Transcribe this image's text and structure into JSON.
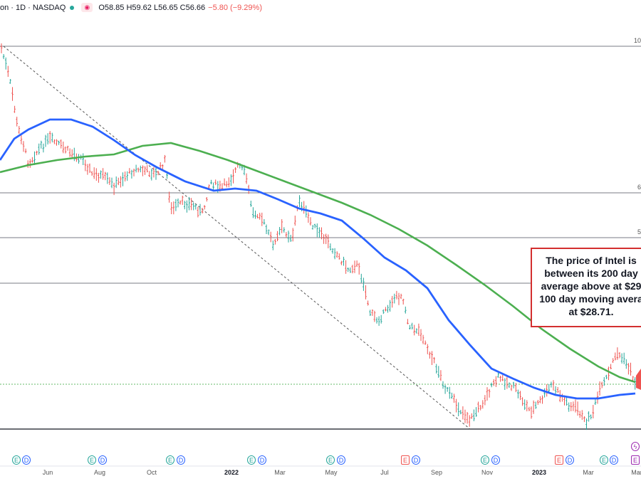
{
  "header": {
    "symbol": "on · 1D · NASDAQ",
    "eye_icon": "eye-icon",
    "ohlc": "O58.85 H59.62 L56.65 C56.66",
    "change": "−5.80 (−9.29%)"
  },
  "annotation": {
    "lines": [
      "The price of Intel is",
      "between its 200 day",
      "average above at $29",
      "100 day moving avera",
      "at $28.71."
    ],
    "border_color": "#d32f2f"
  },
  "price_axis_labels": [
    "10",
    "6",
    "5"
  ],
  "events": {
    "top_row": [
      "E",
      "D",
      "E",
      "D",
      "E",
      "D",
      "E",
      "D",
      "E",
      "D",
      "E",
      "D",
      "E",
      "D",
      "E",
      "D",
      "E",
      "D",
      "E",
      "E"
    ],
    "lightning_icon": "lightning-icon"
  },
  "colors": {
    "ma200": "#4caf50",
    "ma100": "#2962ff",
    "up": "#26a69a",
    "down": "#ef5350",
    "hline": "#787b86",
    "last_price_line": "#66bb6a"
  },
  "chart_data": {
    "type": "candlestick",
    "title": "",
    "x_ticks": [
      "Jun",
      "Aug",
      "Oct",
      "2022",
      "Mar",
      "May",
      "Jul",
      "Sep",
      "Nov",
      "2023",
      "Mar",
      "Mar"
    ],
    "bold_ticks": [
      "2022",
      "2023"
    ],
    "series": [
      {
        "name": "",
        "style": "line",
        "color": "#4caf50",
        "points": [
          [
            0,
            242
          ],
          [
            40,
            232
          ],
          [
            80,
            225
          ],
          [
            120,
            220
          ],
          [
            160,
            217
          ],
          [
            200,
            205
          ],
          [
            240,
            201
          ],
          [
            280,
            212
          ],
          [
            320,
            225
          ],
          [
            360,
            240
          ],
          [
            400,
            255
          ],
          [
            440,
            270
          ],
          [
            480,
            285
          ],
          [
            520,
            302
          ],
          [
            560,
            322
          ],
          [
            600,
            345
          ],
          [
            640,
            372
          ],
          [
            680,
            400
          ],
          [
            720,
            430
          ],
          [
            760,
            462
          ],
          [
            800,
            490
          ],
          [
            840,
            515
          ],
          [
            870,
            530
          ],
          [
            892,
            537
          ]
        ]
      },
      {
        "name": "",
        "style": "line",
        "color": "#2962ff",
        "points": [
          [
            0,
            225
          ],
          [
            20,
            195
          ],
          [
            40,
            182
          ],
          [
            70,
            168
          ],
          [
            100,
            168
          ],
          [
            130,
            178
          ],
          [
            160,
            197
          ],
          [
            190,
            218
          ],
          [
            220,
            235
          ],
          [
            260,
            255
          ],
          [
            300,
            268
          ],
          [
            330,
            265
          ],
          [
            360,
            268
          ],
          [
            390,
            280
          ],
          [
            420,
            293
          ],
          [
            450,
            300
          ],
          [
            480,
            310
          ],
          [
            510,
            335
          ],
          [
            540,
            362
          ],
          [
            570,
            380
          ],
          [
            600,
            405
          ],
          [
            630,
            450
          ],
          [
            660,
            485
          ],
          [
            690,
            518
          ],
          [
            720,
            532
          ],
          [
            750,
            545
          ],
          [
            780,
            555
          ],
          [
            810,
            560
          ],
          [
            840,
            560
          ],
          [
            870,
            555
          ],
          [
            892,
            553
          ]
        ]
      },
      {
        "name": "",
        "style": "ohlc",
        "path": [
          [
            2,
            68
          ],
          [
            12,
            105
          ],
          [
            18,
            135
          ],
          [
            24,
            175
          ],
          [
            32,
            200
          ],
          [
            40,
            230
          ],
          [
            55,
            210
          ],
          [
            70,
            195
          ],
          [
            85,
            205
          ],
          [
            100,
            215
          ],
          [
            115,
            222
          ],
          [
            130,
            245
          ],
          [
            145,
            248
          ],
          [
            160,
            262
          ],
          [
            175,
            248
          ],
          [
            190,
            238
          ],
          [
            205,
            240
          ],
          [
            220,
            245
          ],
          [
            232,
            225
          ],
          [
            240,
            295
          ],
          [
            255,
            285
          ],
          [
            270,
            288
          ],
          [
            285,
            300
          ],
          [
            295,
            255
          ],
          [
            310,
            265
          ],
          [
            325,
            250
          ],
          [
            335,
            232
          ],
          [
            345,
            245
          ],
          [
            355,
            300
          ],
          [
            365,
            300
          ],
          [
            375,
            325
          ],
          [
            385,
            345
          ],
          [
            395,
            320
          ],
          [
            410,
            335
          ],
          [
            420,
            280
          ],
          [
            432,
            305
          ],
          [
            445,
            325
          ],
          [
            460,
            340
          ],
          [
            475,
            360
          ],
          [
            490,
            380
          ],
          [
            500,
            370
          ],
          [
            510,
            395
          ],
          [
            520,
            440
          ],
          [
            530,
            450
          ],
          [
            540,
            440
          ],
          [
            552,
            420
          ],
          [
            565,
            415
          ],
          [
            575,
            460
          ],
          [
            590,
            465
          ],
          [
            605,
            500
          ],
          [
            615,
            520
          ],
          [
            625,
            545
          ],
          [
            635,
            560
          ],
          [
            645,
            575
          ],
          [
            660,
            590
          ],
          [
            675,
            570
          ],
          [
            690,
            545
          ],
          [
            700,
            530
          ],
          [
            715,
            540
          ],
          [
            725,
            548
          ],
          [
            735,
            565
          ],
          [
            745,
            578
          ],
          [
            760,
            562
          ],
          [
            775,
            540
          ],
          [
            790,
            560
          ],
          [
            800,
            570
          ],
          [
            812,
            575
          ],
          [
            822,
            595
          ],
          [
            832,
            580
          ],
          [
            842,
            550
          ],
          [
            855,
            525
          ],
          [
            865,
            495
          ],
          [
            875,
            505
          ],
          [
            885,
            520
          ],
          [
            892,
            540
          ]
        ]
      }
    ],
    "dashed_trendline": [
      [
        5,
        65
      ],
      [
        660,
        603
      ]
    ],
    "horizontal_lines_px": [
      65,
      271,
      334,
      398,
      603
    ],
    "last_price_line_px": 540,
    "grid": false,
    "legend": "none"
  }
}
